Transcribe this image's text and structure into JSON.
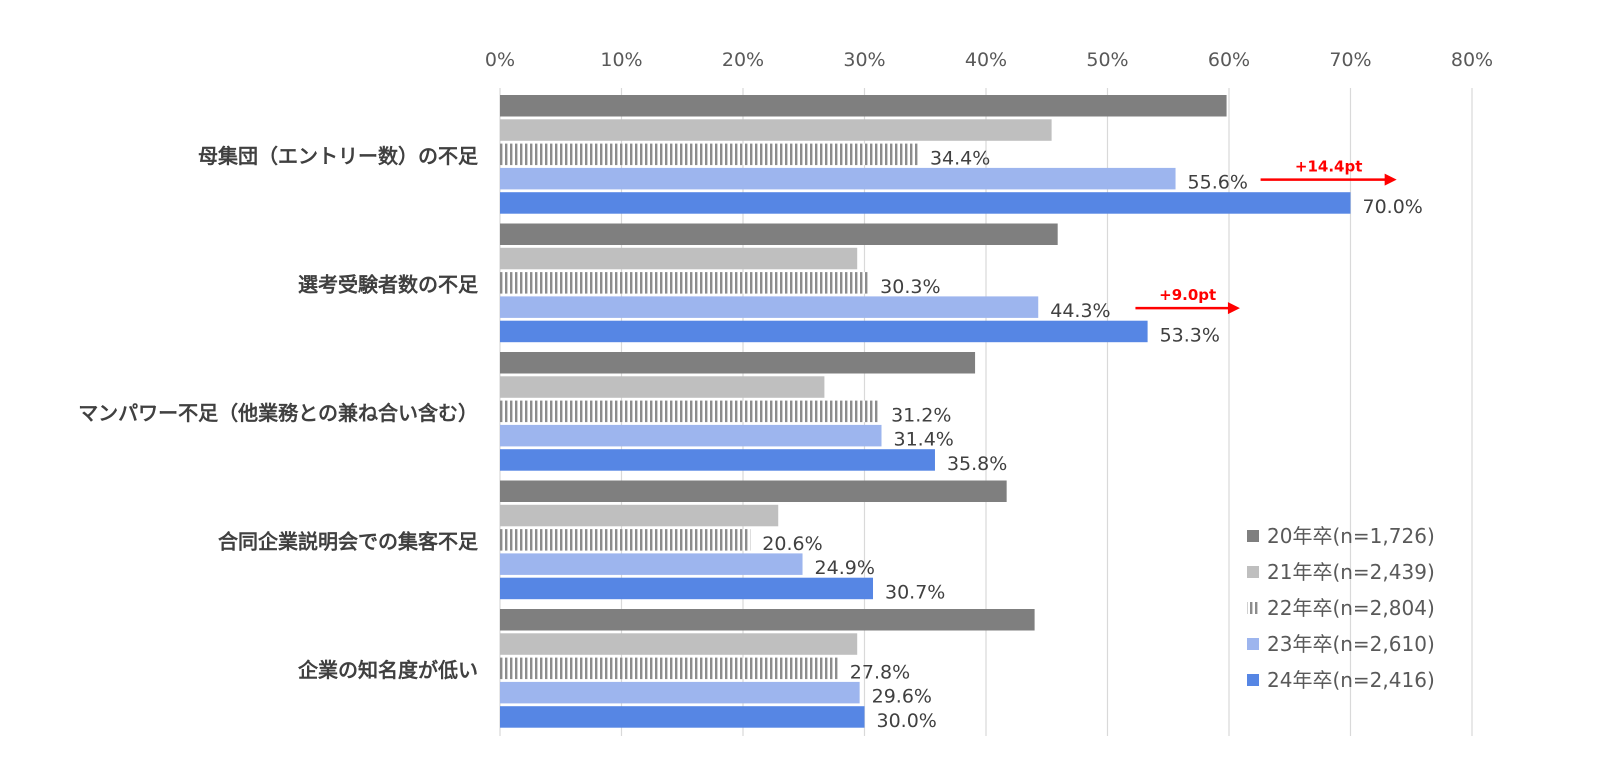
{
  "chart_data": {
    "type": "bar",
    "orientation": "horizontal",
    "title": "",
    "xlabel": "",
    "ylabel": "",
    "xlim": [
      0,
      80
    ],
    "x_ticks": [
      "0%",
      "10%",
      "20%",
      "30%",
      "40%",
      "50%",
      "60%",
      "70%",
      "80%"
    ],
    "grid": true,
    "legend_position": "bottom-right",
    "categories": [
      "母集団（エントリー数）の不足",
      "選考受験者数の不足",
      "マンパワー不足（他業務との兼ね合い含む）",
      "合同企業説明会での集客不足",
      "企業の知名度が低い"
    ],
    "series": [
      {
        "name": "20年卒(n=1,726)",
        "color": "#7f7f7f",
        "pattern": "solid",
        "values": [
          59.8,
          45.9,
          39.1,
          41.7,
          44.0
        ],
        "labels": [
          "",
          "",
          "",
          "",
          ""
        ]
      },
      {
        "name": "21年卒(n=2,439)",
        "color": "#bfbfbf",
        "pattern": "solid",
        "values": [
          45.4,
          29.4,
          26.7,
          22.9,
          29.4
        ],
        "labels": [
          "",
          "",
          "",
          "",
          ""
        ]
      },
      {
        "name": "22年卒(n=2,804)",
        "color": "#8c8c8c",
        "pattern": "vertical-stripes",
        "values": [
          34.4,
          30.3,
          31.2,
          20.6,
          27.8
        ],
        "labels": [
          "34.4%",
          "30.3%",
          "31.2%",
          "20.6%",
          "27.8%"
        ]
      },
      {
        "name": "23年卒(n=2,610)",
        "color": "#9db5ee",
        "pattern": "solid",
        "values": [
          55.6,
          44.3,
          31.4,
          24.9,
          29.6
        ],
        "labels": [
          "55.6%",
          "44.3%",
          "31.4%",
          "24.9%",
          "29.6%"
        ]
      },
      {
        "name": "24年卒(n=2,416)",
        "color": "#5686e4",
        "pattern": "solid",
        "values": [
          70.0,
          53.3,
          35.8,
          30.7,
          30.0
        ],
        "labels": [
          "70.0%",
          "53.3%",
          "35.8%",
          "30.7%",
          "30.0%"
        ]
      }
    ],
    "annotations": [
      {
        "category_index": 0,
        "text": "+14.4pt",
        "from_value": 62.6,
        "to_value": 73.8,
        "color": "#ff0000"
      },
      {
        "category_index": 1,
        "text": "+9.0pt",
        "from_value": 52.3,
        "to_value": 60.9,
        "color": "#ff0000"
      }
    ]
  }
}
